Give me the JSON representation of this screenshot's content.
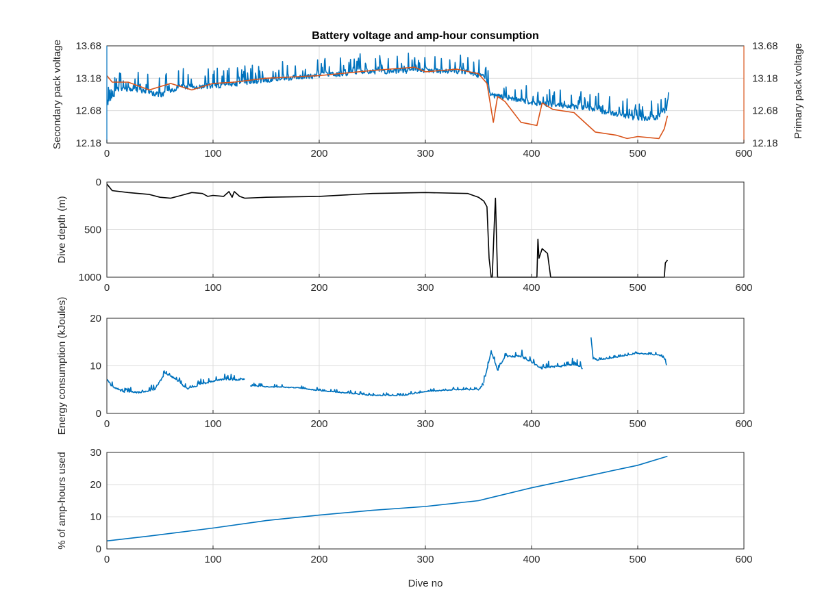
{
  "colors": {
    "blue": "#0072bd",
    "orange": "#d95319",
    "black": "#000000",
    "axis": "#262626",
    "grid": "#dcdcdc"
  },
  "chart_data": [
    {
      "type": "line",
      "title": "Battery voltage and amp-hour consumption",
      "xlabel": "",
      "ylabel": "Secondary pack voltage",
      "ylabel_right": "Primary pack voltage",
      "xlim": [
        0,
        600
      ],
      "ylim": [
        12.18,
        13.68
      ],
      "xticks": [
        "0",
        "100",
        "200",
        "300",
        "400",
        "500",
        "600"
      ],
      "yticks": [
        "12.18",
        "12.68",
        "13.18",
        "13.68"
      ],
      "yticks_right": [
        "12.18",
        "12.68",
        "13.18",
        "13.68"
      ],
      "grid": true,
      "series": [
        {
          "axis": "left",
          "color": "#0072bd",
          "style": "noisy",
          "noise_amplitude": 0.22,
          "x": [
            0,
            10,
            30,
            50,
            70,
            100,
            150,
            200,
            250,
            300,
            340,
            355,
            362,
            375,
            400,
            450,
            480,
            500,
            520,
            527,
            529
          ],
          "y": [
            12.75,
            13.0,
            13.0,
            12.92,
            13.05,
            13.05,
            13.15,
            13.22,
            13.28,
            13.3,
            13.28,
            13.2,
            12.92,
            12.88,
            12.8,
            12.72,
            12.62,
            12.55,
            12.58,
            12.7,
            12.95
          ]
        },
        {
          "axis": "right",
          "color": "#d95319",
          "style": "smooth",
          "x": [
            0,
            5,
            20,
            40,
            60,
            80,
            100,
            120,
            150,
            200,
            250,
            290,
            300,
            330,
            350,
            358,
            362,
            364,
            368,
            375,
            390,
            405,
            410,
            420,
            440,
            460,
            480,
            490,
            500,
            520,
            525,
            528
          ],
          "y": [
            13.22,
            13.12,
            13.12,
            13.0,
            13.1,
            13.0,
            13.1,
            13.12,
            13.18,
            13.22,
            13.3,
            13.35,
            13.28,
            13.32,
            13.25,
            13.1,
            12.7,
            12.5,
            12.9,
            12.82,
            12.5,
            12.45,
            12.8,
            12.7,
            12.65,
            12.35,
            12.3,
            12.25,
            12.28,
            12.25,
            12.4,
            12.6
          ]
        }
      ]
    },
    {
      "type": "line",
      "title": "",
      "xlabel": "",
      "ylabel": "Dive depth (m)",
      "xlim": [
        0,
        600
      ],
      "ylim": [
        0,
        1000
      ],
      "y_reversed": true,
      "xticks": [
        "0",
        "100",
        "200",
        "300",
        "400",
        "500",
        "600"
      ],
      "yticks": [
        "0",
        "500",
        "1000"
      ],
      "grid": true,
      "series": [
        {
          "color": "#000000",
          "style": "smooth",
          "x": [
            0,
            5,
            20,
            40,
            50,
            60,
            70,
            80,
            90,
            95,
            100,
            110,
            115,
            118,
            120,
            125,
            130,
            150,
            200,
            250,
            300,
            340,
            350,
            355,
            358,
            360,
            362,
            363,
            365,
            366,
            367,
            368,
            370,
            380,
            400,
            405,
            406,
            407,
            410,
            415,
            418,
            420,
            450,
            500,
            525,
            526,
            528
          ],
          "y": [
            20,
            90,
            110,
            130,
            160,
            170,
            140,
            110,
            120,
            150,
            140,
            150,
            100,
            160,
            100,
            150,
            170,
            160,
            150,
            120,
            110,
            120,
            160,
            200,
            260,
            800,
            1000,
            1000,
            400,
            170,
            600,
            1000,
            1000,
            1000,
            1000,
            1000,
            600,
            800,
            700,
            750,
            1000,
            1000,
            1000,
            1000,
            1000,
            850,
            820
          ]
        }
      ]
    },
    {
      "type": "line",
      "title": "",
      "xlabel": "",
      "ylabel": "Energy consumption (kJoules)",
      "xlim": [
        0,
        600
      ],
      "ylim": [
        0,
        20
      ],
      "xticks": [
        "0",
        "100",
        "200",
        "300",
        "400",
        "500",
        "600"
      ],
      "yticks": [
        "0",
        "10",
        "20"
      ],
      "grid": true,
      "series": [
        {
          "color": "#0072bd",
          "style": "noisy",
          "noise_amplitude": 0.9,
          "x": [
            0,
            5,
            15,
            30,
            45,
            55,
            65,
            75,
            90,
            100,
            110,
            120,
            130
          ],
          "y": [
            7.2,
            5.6,
            4.6,
            4.4,
            5.0,
            8.5,
            7.2,
            5.2,
            6.2,
            6.8,
            7.2,
            7.0,
            7.2
          ]
        },
        {
          "color": "#0072bd",
          "style": "noisy",
          "noise_amplitude": 0.5,
          "x": [
            135,
            150,
            180,
            200,
            250,
            280,
            300,
            330,
            350,
            355
          ],
          "y": [
            5.8,
            5.6,
            5.4,
            4.8,
            3.8,
            3.8,
            4.6,
            5.0,
            5.0,
            6.0
          ]
        },
        {
          "color": "#0072bd",
          "style": "noisy",
          "noise_amplitude": 1.1,
          "x": [
            355,
            362,
            368,
            375,
            390,
            410,
            420,
            440,
            448
          ],
          "y": [
            6.5,
            13.0,
            9.0,
            12.0,
            12.0,
            9.5,
            9.8,
            10.2,
            9.5
          ]
        },
        {
          "color": "#0072bd",
          "style": "noisy",
          "noise_amplitude": 0.4,
          "x": [
            456,
            458,
            462,
            480,
            500,
            520,
            525,
            527
          ],
          "y": [
            16.0,
            11.5,
            11.2,
            11.8,
            12.6,
            12.3,
            11.6,
            10.2
          ]
        }
      ]
    },
    {
      "type": "line",
      "title": "",
      "xlabel": "Dive no",
      "ylabel": "% of amp-hours used",
      "xlim": [
        0,
        600
      ],
      "ylim": [
        0,
        30
      ],
      "xticks": [
        "0",
        "100",
        "200",
        "300",
        "400",
        "500",
        "600"
      ],
      "yticks": [
        "0",
        "10",
        "20",
        "30"
      ],
      "grid": true,
      "series": [
        {
          "color": "#0072bd",
          "style": "smooth",
          "x": [
            0,
            40,
            100,
            150,
            200,
            250,
            300,
            350,
            360,
            400,
            450,
            500,
            528
          ],
          "y": [
            2.5,
            4.0,
            6.5,
            8.8,
            10.5,
            12.0,
            13.2,
            15.0,
            15.8,
            19.0,
            22.5,
            26.0,
            28.8
          ]
        }
      ]
    }
  ]
}
